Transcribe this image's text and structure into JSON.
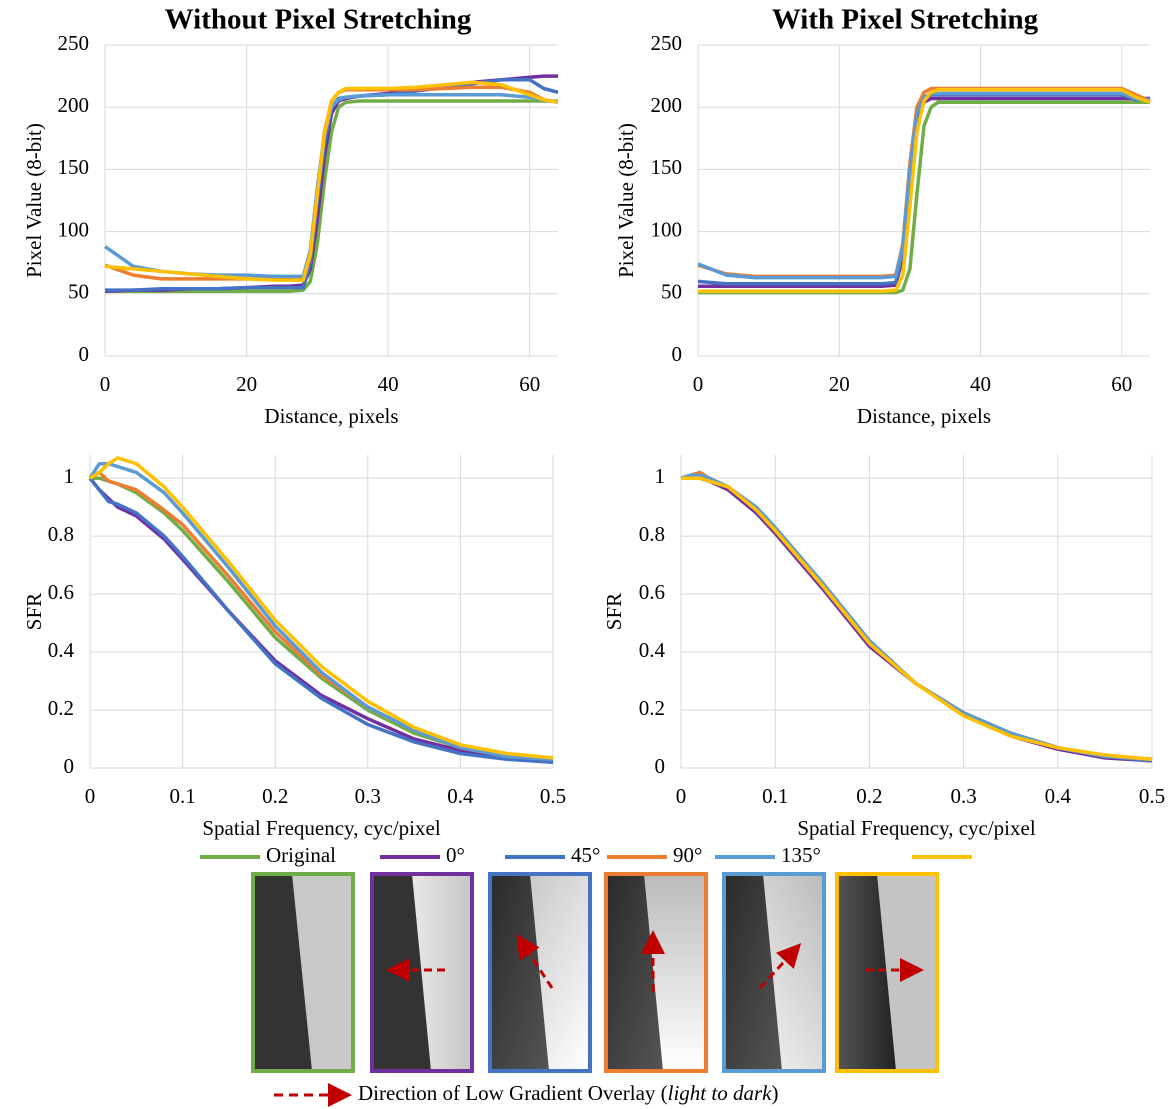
{
  "chart_data": [
    {
      "type": "line",
      "title": "Without Pixel Stretching",
      "xlabel": "Distance, pixels",
      "ylabel": "Pixel Value (8-bit)",
      "xlim": [
        0,
        64
      ],
      "ylim": [
        0,
        250
      ],
      "xticks": [
        0,
        20,
        40,
        60
      ],
      "yticks": [
        0,
        50,
        100,
        150,
        200,
        250
      ],
      "grid": true,
      "x": [
        0,
        4,
        8,
        12,
        16,
        20,
        24,
        26,
        28,
        29,
        30,
        31,
        32,
        33,
        34,
        36,
        40,
        44,
        48,
        52,
        56,
        60,
        62,
        64
      ],
      "series": [
        {
          "name": "Original",
          "color": "#70ad47",
          "values": [
            52,
            52,
            52,
            52,
            52,
            52,
            52,
            52,
            53,
            60,
            90,
            140,
            180,
            200,
            204,
            205,
            205,
            205,
            205,
            205,
            205,
            205,
            205,
            205
          ]
        },
        {
          "name": "0°",
          "color": "#7030a0",
          "values": [
            52,
            53,
            53,
            54,
            54,
            55,
            56,
            56,
            57,
            70,
            110,
            160,
            195,
            205,
            207,
            209,
            211,
            214,
            217,
            220,
            222,
            224,
            225,
            225
          ]
        },
        {
          "name": "45°",
          "color": "#4472c4",
          "values": [
            53,
            53,
            54,
            54,
            54,
            55,
            55,
            55,
            55,
            75,
            125,
            170,
            200,
            207,
            208,
            209,
            210,
            213,
            216,
            219,
            222,
            222,
            215,
            212
          ]
        },
        {
          "name": "90°",
          "color": "#ed7d31",
          "values": [
            73,
            65,
            62,
            62,
            62,
            62,
            62,
            62,
            62,
            80,
            130,
            180,
            205,
            212,
            214,
            214,
            214,
            214,
            215,
            216,
            216,
            212,
            206,
            204
          ]
        },
        {
          "name": "135°",
          "color": "#5b9bd5",
          "values": [
            88,
            72,
            68,
            66,
            65,
            65,
            64,
            64,
            64,
            85,
            135,
            178,
            200,
            206,
            208,
            209,
            210,
            210,
            210,
            210,
            210,
            208,
            206,
            204
          ]
        },
        {
          "name": null,
          "color": "#ffc000",
          "values": [
            72,
            70,
            68,
            66,
            64,
            62,
            61,
            61,
            61,
            82,
            130,
            178,
            205,
            212,
            215,
            215,
            215,
            216,
            218,
            220,
            218,
            210,
            206,
            204
          ]
        }
      ]
    },
    {
      "type": "line",
      "title": "With Pixel Stretching",
      "xlabel": "Distance, pixels",
      "ylabel": "Pixel Value (8-bit)",
      "xlim": [
        0,
        64
      ],
      "ylim": [
        0,
        250
      ],
      "xticks": [
        0,
        20,
        40,
        60
      ],
      "yticks": [
        0,
        50,
        100,
        150,
        200,
        250
      ],
      "grid": true,
      "x": [
        0,
        4,
        8,
        12,
        16,
        20,
        24,
        26,
        28,
        29,
        30,
        31,
        32,
        33,
        34,
        36,
        40,
        44,
        48,
        52,
        56,
        60,
        62,
        64
      ],
      "series": [
        {
          "name": "Original",
          "color": "#70ad47",
          "values": [
            51,
            51,
            51,
            51,
            51,
            51,
            51,
            51,
            51,
            53,
            70,
            130,
            185,
            200,
            204,
            204,
            204,
            204,
            204,
            204,
            204,
            204,
            204,
            204
          ]
        },
        {
          "name": "0°",
          "color": "#7030a0",
          "values": [
            56,
            56,
            56,
            56,
            56,
            56,
            56,
            56,
            57,
            80,
            140,
            190,
            204,
            207,
            207,
            207,
            207,
            207,
            207,
            207,
            207,
            207,
            207,
            207
          ]
        },
        {
          "name": "45°",
          "color": "#4472c4",
          "values": [
            60,
            58,
            58,
            58,
            58,
            58,
            58,
            58,
            59,
            85,
            150,
            195,
            207,
            210,
            210,
            210,
            210,
            210,
            210,
            210,
            210,
            210,
            206,
            207
          ]
        },
        {
          "name": "90°",
          "color": "#ed7d31",
          "values": [
            73,
            66,
            64,
            64,
            64,
            64,
            64,
            64,
            65,
            90,
            155,
            200,
            212,
            215,
            215,
            215,
            215,
            215,
            215,
            215,
            215,
            215,
            210,
            205
          ]
        },
        {
          "name": "135°",
          "color": "#5b9bd5",
          "values": [
            74,
            65,
            63,
            63,
            63,
            63,
            63,
            63,
            64,
            88,
            150,
            195,
            208,
            211,
            211,
            211,
            211,
            211,
            211,
            211,
            211,
            211,
            207,
            205
          ]
        },
        {
          "name": null,
          "color": "#ffc000",
          "values": [
            52,
            52,
            52,
            52,
            52,
            52,
            52,
            52,
            53,
            65,
            120,
            180,
            205,
            212,
            214,
            214,
            214,
            214,
            214,
            214,
            214,
            214,
            208,
            204
          ]
        }
      ]
    },
    {
      "type": "line",
      "xlabel": "Spatial Frequency, cyc/pixel",
      "ylabel": "SFR",
      "xlim": [
        0,
        0.5
      ],
      "ylim": [
        0,
        1.08
      ],
      "xticks": [
        0,
        0.1,
        0.2,
        0.3,
        0.4,
        0.5
      ],
      "yticks": [
        0,
        0.2,
        0.4,
        0.6,
        0.8,
        1
      ],
      "grid": true,
      "x": [
        0,
        0.01,
        0.02,
        0.03,
        0.05,
        0.08,
        0.1,
        0.15,
        0.2,
        0.25,
        0.3,
        0.35,
        0.4,
        0.45,
        0.5
      ],
      "series": [
        {
          "name": "Original",
          "color": "#70ad47",
          "values": [
            1,
            1.0,
            0.99,
            0.98,
            0.95,
            0.88,
            0.82,
            0.64,
            0.45,
            0.31,
            0.2,
            0.12,
            0.07,
            0.04,
            0.03
          ]
        },
        {
          "name": "0°",
          "color": "#7030a0",
          "values": [
            1,
            0.96,
            0.93,
            0.9,
            0.87,
            0.79,
            0.72,
            0.54,
            0.37,
            0.25,
            0.17,
            0.1,
            0.06,
            0.035,
            0.02
          ]
        },
        {
          "name": "45°",
          "color": "#4472c4",
          "values": [
            1,
            0.96,
            0.92,
            0.91,
            0.88,
            0.8,
            0.73,
            0.54,
            0.36,
            0.24,
            0.15,
            0.09,
            0.05,
            0.03,
            0.02
          ]
        },
        {
          "name": "90°",
          "color": "#ed7d31",
          "values": [
            1,
            1.02,
            0.99,
            0.98,
            0.96,
            0.89,
            0.84,
            0.66,
            0.47,
            0.32,
            0.21,
            0.13,
            0.07,
            0.04,
            0.03
          ]
        },
        {
          "name": "135°",
          "color": "#5b9bd5",
          "values": [
            1,
            1.05,
            1.05,
            1.04,
            1.02,
            0.95,
            0.88,
            0.69,
            0.49,
            0.33,
            0.21,
            0.13,
            0.07,
            0.04,
            0.03
          ]
        },
        {
          "name": null,
          "color": "#ffc000",
          "values": [
            1,
            1.02,
            1.05,
            1.07,
            1.05,
            0.97,
            0.9,
            0.71,
            0.51,
            0.35,
            0.23,
            0.14,
            0.08,
            0.05,
            0.035
          ]
        }
      ]
    },
    {
      "type": "line",
      "xlabel": "Spatial Frequency, cyc/pixel",
      "ylabel": "SFR",
      "xlim": [
        0,
        0.5
      ],
      "ylim": [
        0,
        1.08
      ],
      "xticks": [
        0,
        0.1,
        0.2,
        0.3,
        0.4,
        0.5
      ],
      "yticks": [
        0,
        0.2,
        0.4,
        0.6,
        0.8,
        1
      ],
      "grid": true,
      "x": [
        0,
        0.01,
        0.02,
        0.03,
        0.05,
        0.08,
        0.1,
        0.15,
        0.2,
        0.25,
        0.3,
        0.35,
        0.4,
        0.45,
        0.5
      ],
      "series": [
        {
          "name": "Original",
          "color": "#70ad47",
          "values": [
            1,
            1.0,
            1.0,
            0.99,
            0.97,
            0.89,
            0.82,
            0.63,
            0.43,
            0.29,
            0.19,
            0.12,
            0.07,
            0.04,
            0.025
          ]
        },
        {
          "name": "0°",
          "color": "#7030a0",
          "values": [
            1,
            1.0,
            1.0,
            0.99,
            0.96,
            0.88,
            0.81,
            0.62,
            0.42,
            0.29,
            0.19,
            0.11,
            0.065,
            0.035,
            0.025
          ]
        },
        {
          "name": "45°",
          "color": "#4472c4",
          "values": [
            1,
            1.01,
            1.01,
            0.99,
            0.97,
            0.89,
            0.82,
            0.63,
            0.43,
            0.29,
            0.19,
            0.12,
            0.07,
            0.04,
            0.025
          ]
        },
        {
          "name": "90°",
          "color": "#ed7d31",
          "values": [
            1,
            1.01,
            1.02,
            1.0,
            0.97,
            0.89,
            0.82,
            0.63,
            0.43,
            0.29,
            0.19,
            0.12,
            0.07,
            0.04,
            0.03
          ]
        },
        {
          "name": "135°",
          "color": "#5b9bd5",
          "values": [
            1,
            1.01,
            1.01,
            1.0,
            0.97,
            0.9,
            0.83,
            0.64,
            0.44,
            0.29,
            0.19,
            0.12,
            0.07,
            0.04,
            0.03
          ]
        },
        {
          "name": null,
          "color": "#ffc000",
          "values": [
            1,
            1.0,
            1.0,
            0.99,
            0.97,
            0.89,
            0.82,
            0.63,
            0.43,
            0.29,
            0.18,
            0.11,
            0.07,
            0.045,
            0.03
          ]
        }
      ]
    }
  ],
  "caption": {
    "text": "Direction of Low Gradient Overlay (",
    "italic": "light to dark",
    "end": ")"
  }
}
